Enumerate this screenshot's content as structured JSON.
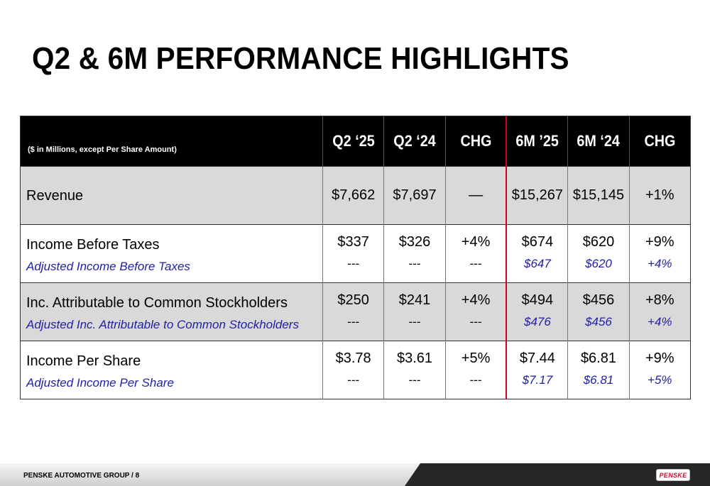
{
  "title": "Q2 & 6M PERFORMANCE HIGHLIGHTS",
  "table": {
    "note": "($ in Millions, except Per Share Amount)",
    "columns": [
      "Q2 ‘25",
      "Q2 ‘24",
      "CHG",
      "6M ’25",
      "6M ‘24",
      "CHG"
    ],
    "rows": [
      {
        "label": "Revenue",
        "values": [
          "$7,662",
          "$7,697",
          "—",
          "$15,267",
          "$15,145",
          "+1%"
        ]
      },
      {
        "label": "Income Before Taxes",
        "values": [
          "$337",
          "$326",
          "+4%",
          "$674",
          "$620",
          "+9%"
        ],
        "adj_label": "Adjusted Income Before Taxes",
        "adj_values": [
          "---",
          "---",
          "---",
          "$647",
          "$620",
          "+4%"
        ]
      },
      {
        "label": "Inc. Attributable to Common Stockholders",
        "values": [
          "$250",
          "$241",
          "+4%",
          "$494",
          "$456",
          "+8%"
        ],
        "adj_label": "Adjusted Inc. Attributable to Common Stockholders",
        "adj_values": [
          "---",
          "---",
          "---",
          "$476",
          "$456",
          "+4%"
        ]
      },
      {
        "label": "Income Per Share",
        "values": [
          "$3.78",
          "$3.61",
          "+5%",
          "$7.44",
          "$6.81",
          "+9%"
        ],
        "adj_label": "Adjusted Income Per Share",
        "adj_values": [
          "---",
          "---",
          "---",
          "$7.17",
          "$6.81",
          "+5%"
        ]
      }
    ]
  },
  "footer": {
    "text": "PENSKE AUTOMOTIVE GROUP  /  8",
    "logo": "PENSKE"
  },
  "colors": {
    "adjusted_text": "#1f1fa8",
    "separator": "#d0021b",
    "header_bg": "#000000",
    "shade": "#d9d9d9"
  }
}
